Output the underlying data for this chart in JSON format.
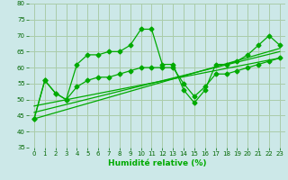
{
  "xlabel": "Humidité relative (%)",
  "bg_color": "#cce8e8",
  "grid_color": "#aaccaa",
  "line_color": "#00aa00",
  "xlim": [
    -0.5,
    23.5
  ],
  "ylim": [
    35,
    80
  ],
  "yticks": [
    35,
    40,
    45,
    50,
    55,
    60,
    65,
    70,
    75,
    80
  ],
  "xticks": [
    0,
    1,
    2,
    3,
    4,
    5,
    6,
    7,
    8,
    9,
    10,
    11,
    12,
    13,
    14,
    15,
    16,
    17,
    18,
    19,
    20,
    21,
    22,
    23
  ],
  "line1_x": [
    0,
    1,
    2,
    3,
    4,
    5,
    6,
    7,
    8,
    9,
    10,
    11,
    12,
    13,
    14,
    15,
    16,
    17,
    18,
    19,
    20,
    21,
    22,
    23
  ],
  "line1_y": [
    44,
    56,
    52,
    50,
    61,
    64,
    64,
    65,
    65,
    67,
    72,
    72,
    61,
    61,
    53,
    49,
    53,
    61,
    61,
    62,
    64,
    67,
    70,
    67
  ],
  "line2_x": [
    0,
    1,
    2,
    3,
    4,
    5,
    6,
    7,
    8,
    9,
    10,
    11,
    12,
    13,
    14,
    15,
    16,
    17,
    18,
    19,
    20,
    21,
    22,
    23
  ],
  "line2_y": [
    44,
    56,
    52,
    50,
    54,
    56,
    57,
    57,
    58,
    59,
    60,
    60,
    60,
    60,
    55,
    51,
    54,
    58,
    58,
    59,
    60,
    61,
    62,
    63
  ],
  "line3_x": [
    0,
    23
  ],
  "line3_y": [
    44,
    66
  ],
  "line4_x": [
    0,
    23
  ],
  "line4_y": [
    46,
    65
  ],
  "line5_x": [
    0,
    23
  ],
  "line5_y": [
    48,
    63
  ]
}
